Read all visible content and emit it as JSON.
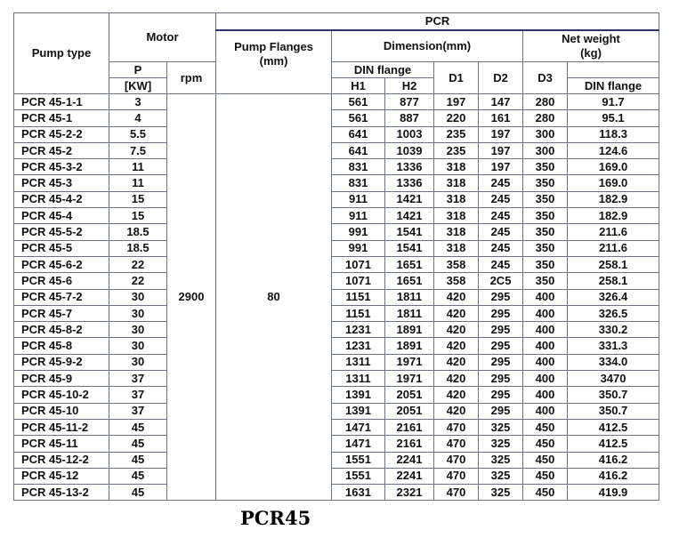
{
  "headers": {
    "pump_type": "Pump type",
    "motor": "Motor",
    "pcr": "PCR",
    "pump_flanges_l1": "Pump Flanges",
    "pump_flanges_l2": "(mm)",
    "dimension": "Dimension(mm)",
    "net_weight_l1": "Net weight",
    "net_weight_l2": "(kg)",
    "p": "P",
    "kw": "[KW]",
    "rpm": "rpm",
    "din_flange": "DIN flange",
    "h1": "H1",
    "h2": "H2",
    "d1": "D1",
    "d2": "D2",
    "d3": "D3",
    "weight_din": "DIN flange"
  },
  "rpm_value": "2900",
  "flange_value": "80",
  "rows": [
    [
      "PCR 45-1-1",
      "3",
      "561",
      "877",
      "197",
      "147",
      "280",
      "91.7"
    ],
    [
      "PCR 45-1",
      "4",
      "561",
      "887",
      "220",
      "161",
      "280",
      "95.1"
    ],
    [
      "PCR 45-2-2",
      "5.5",
      "641",
      "1003",
      "235",
      "197",
      "300",
      "118.3"
    ],
    [
      "PCR 45-2",
      "7.5",
      "641",
      "1039",
      "235",
      "197",
      "300",
      "124.6"
    ],
    [
      "PCR 45-3-2",
      "11",
      "831",
      "1336",
      "318",
      "197",
      "350",
      "169.0"
    ],
    [
      "PCR 45-3",
      "11",
      "831",
      "1336",
      "318",
      "245",
      "350",
      "169.0"
    ],
    [
      "PCR 45-4-2",
      "15",
      "911",
      "1421",
      "318",
      "245",
      "350",
      "182.9"
    ],
    [
      "PCR 45-4",
      "15",
      "911",
      "1421",
      "318",
      "245",
      "350",
      "182.9"
    ],
    [
      "PCR 45-5-2",
      "18.5",
      "991",
      "1541",
      "318",
      "245",
      "350",
      "211.6"
    ],
    [
      "PCR 45-5",
      "18.5",
      "991",
      "1541",
      "318",
      "245",
      "350",
      "211.6"
    ],
    [
      "PCR 45-6-2",
      "22",
      "1071",
      "1651",
      "358",
      "245",
      "350",
      "258.1"
    ],
    [
      "PCR 45-6",
      "22",
      "1071",
      "1651",
      "358",
      "2C5",
      "350",
      "258.1"
    ],
    [
      "PCR 45-7-2",
      "30",
      "1151",
      "1811",
      "420",
      "295",
      "400",
      "326.4"
    ],
    [
      "PCR 45-7",
      "30",
      "1151",
      "1811",
      "420",
      "295",
      "400",
      "326.5"
    ],
    [
      "PCR 45-8-2",
      "30",
      "1231",
      "1891",
      "420",
      "295",
      "400",
      "330.2"
    ],
    [
      "PCR 45-8",
      "30",
      "1231",
      "1891",
      "420",
      "295",
      "400",
      "331.3"
    ],
    [
      "PCR 45-9-2",
      "30",
      "1311",
      "1971",
      "420",
      "295",
      "400",
      "334.0"
    ],
    [
      "PCR 45-9",
      "37",
      "1311",
      "1971",
      "420",
      "295",
      "400",
      "3470"
    ],
    [
      "PCR 45-10-2",
      "37",
      "1391",
      "2051",
      "420",
      "295",
      "400",
      "350.7"
    ],
    [
      "PCR 45-10",
      "37",
      "1391",
      "2051",
      "420",
      "295",
      "400",
      "350.7"
    ],
    [
      "PCR 45-11-2",
      "45",
      "1471",
      "2161",
      "470",
      "325",
      "450",
      "412.5"
    ],
    [
      "PCR 45-11",
      "45",
      "1471",
      "2161",
      "470",
      "325",
      "450",
      "412.5"
    ],
    [
      "PCR 45-12-2",
      "45",
      "1551",
      "2241",
      "470",
      "325",
      "450",
      "416.2"
    ],
    [
      "PCR 45-12",
      "45",
      "1551",
      "2241",
      "470",
      "325",
      "450",
      "416.2"
    ],
    [
      "PCR 45-13-2",
      "45",
      "1631",
      "2321",
      "470",
      "325",
      "450",
      "419.9"
    ]
  ],
  "caption": "PCR45"
}
